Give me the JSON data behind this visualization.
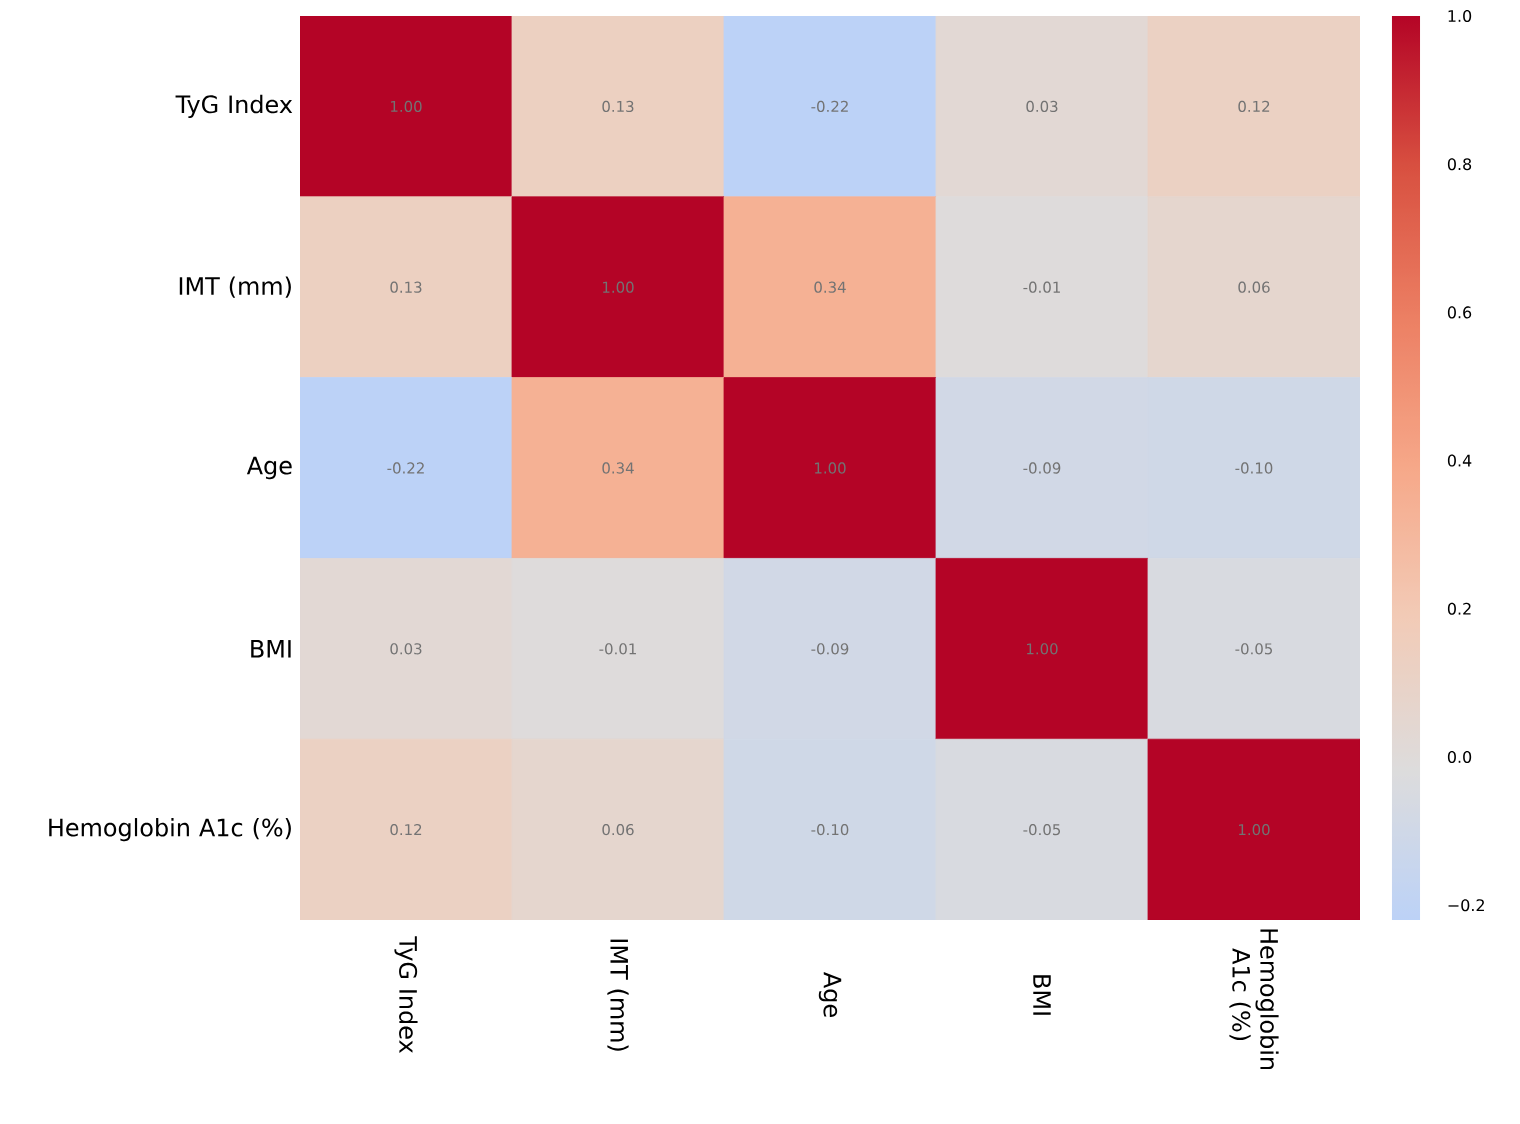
{
  "chart_data": {
    "type": "heatmap",
    "categories": [
      "TyG Index",
      "IMT (mm)",
      "Age",
      "BMI",
      "Hemoglobin A1c (%)"
    ],
    "y_categories": [
      "TyG Index",
      "IMT (mm)",
      "Age",
      "BMI",
      "Hemoglobin A1c (%)"
    ],
    "cells": [
      [
        1.0,
        0.13,
        -0.22,
        0.03,
        0.12
      ],
      [
        0.13,
        1.0,
        0.34,
        -0.01,
        0.06
      ],
      [
        -0.22,
        0.34,
        1.0,
        -0.09,
        -0.1
      ],
      [
        0.03,
        -0.01,
        -0.09,
        1.0,
        -0.05
      ],
      [
        0.12,
        0.06,
        -0.1,
        -0.05,
        1.0
      ]
    ],
    "cell_labels": [
      [
        "1.00",
        "0.13",
        "-0.22",
        "0.03",
        "0.12"
      ],
      [
        "0.13",
        "1.00",
        "0.34",
        "-0.01",
        "0.06"
      ],
      [
        "-0.22",
        "0.34",
        "1.00",
        "-0.09",
        "-0.10"
      ],
      [
        "0.03",
        "-0.01",
        "-0.09",
        "1.00",
        "-0.05"
      ],
      [
        "0.12",
        "0.06",
        "-0.10",
        "-0.05",
        "1.00"
      ]
    ],
    "clim": [
      -0.22,
      1.0
    ],
    "cticks": [
      {
        "value": -0.2,
        "label": "−0.2"
      },
      {
        "value": 0,
        "label": "0.0"
      },
      {
        "value": 0.2,
        "label": "0.2"
      },
      {
        "value": 0.4,
        "label": "0.4"
      },
      {
        "value": 0.6,
        "label": "0.6"
      },
      {
        "value": 0.8,
        "label": "0.8"
      },
      {
        "value": 1.0,
        "label": "1.0"
      }
    ]
  }
}
